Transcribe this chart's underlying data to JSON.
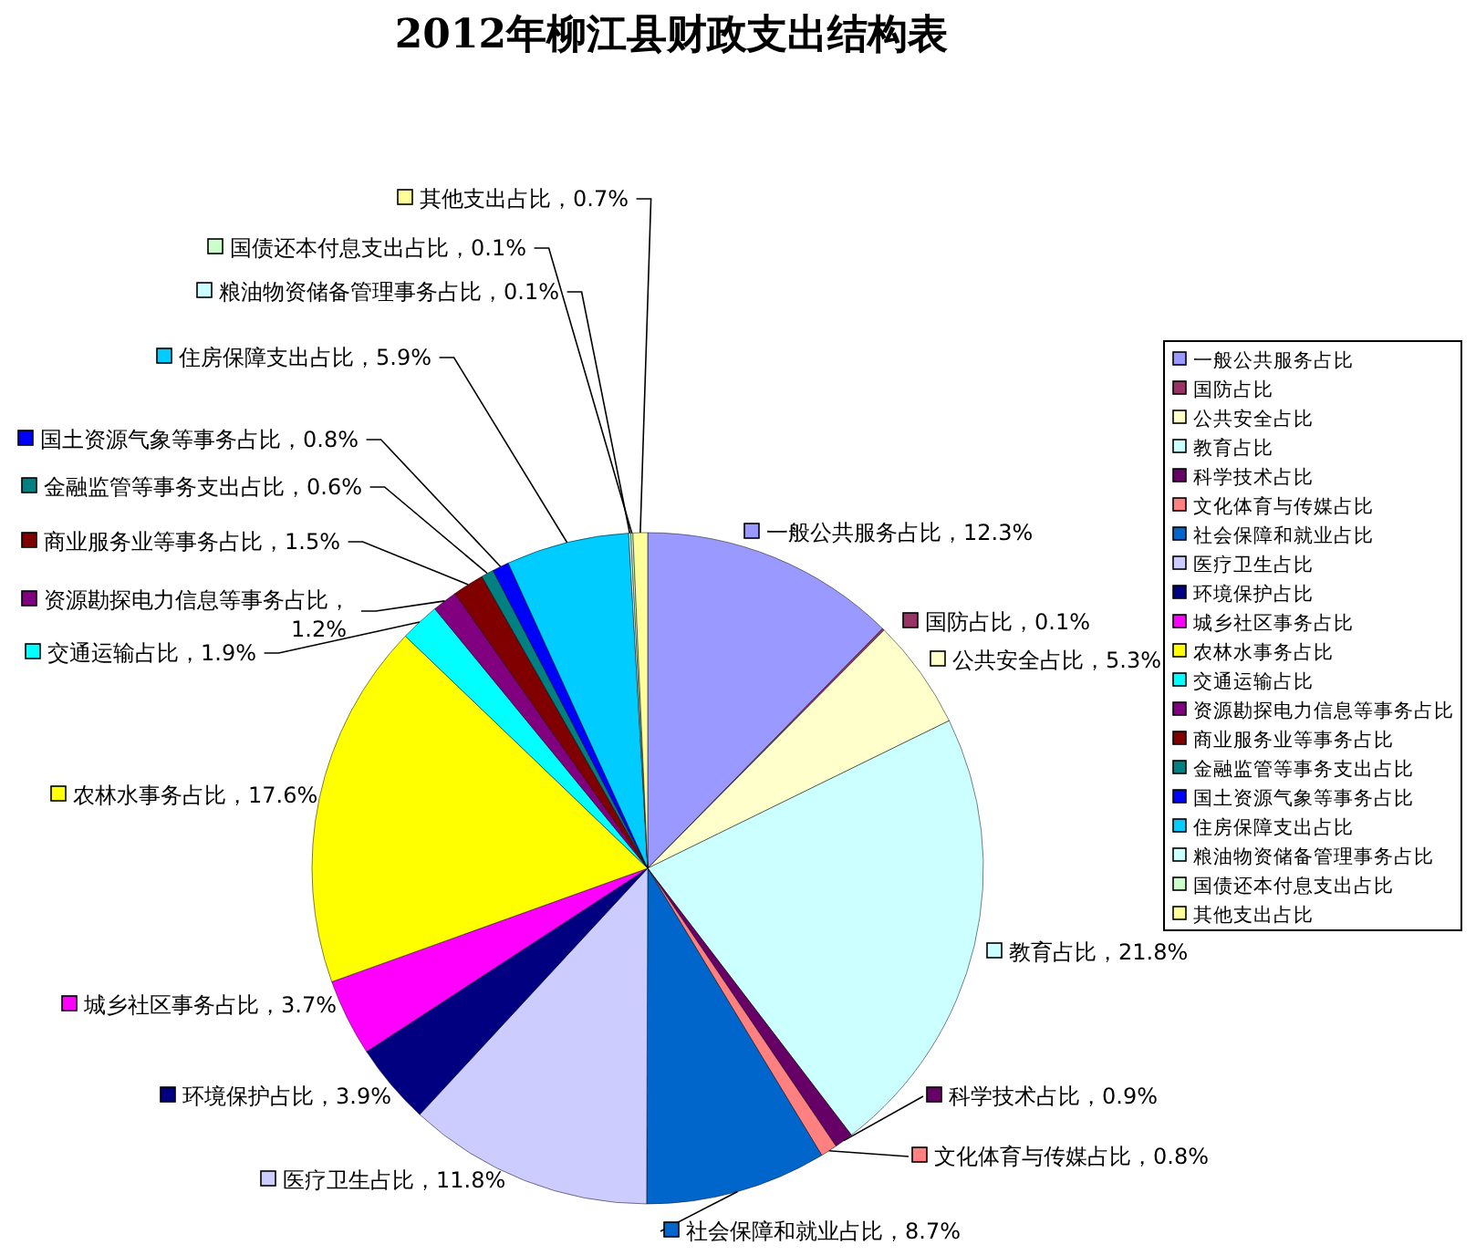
{
  "chart_data": {
    "type": "pie",
    "title": "2012年柳江县财政支出结构表",
    "categories": [
      "一般公共服务占比",
      "国防占比",
      "公共安全占比",
      "教育占比",
      "科学技术占比",
      "文化体育与传媒占比",
      "社会保障和就业占比",
      "医疗卫生占比",
      "环境保护占比",
      "城乡社区事务占比",
      "农林水事务占比",
      "交通运输占比",
      "资源勘探电力信息等事务占比",
      "商业服务业等事务占比",
      "金融监管等事务支出占比",
      "国土资源气象等事务占比",
      "住房保障支出占比",
      "粮油物资储备管理事务占比",
      "国债还本付息支出占比",
      "其他支出占比"
    ],
    "values": [
      12.3,
      0.1,
      5.3,
      21.8,
      0.9,
      0.8,
      8.7,
      11.8,
      3.9,
      3.7,
      17.6,
      1.9,
      1.2,
      1.5,
      0.6,
      0.8,
      5.9,
      0.1,
      0.1,
      0.7
    ],
    "value_labels": [
      "，12.3%",
      "，0.1%",
      "，5.3%",
      "，21.8%",
      "，0.9%",
      "，0.8%",
      "，8.7%",
      "，11.8%",
      "，3.9%",
      "，3.7%",
      "，17.6%",
      "，1.9%",
      "，1.2%",
      "，1.5%",
      "，0.6%",
      "，0.8%",
      "，5.9%",
      "，0.1%",
      "，0.1%",
      "，0.7%"
    ],
    "colors": [
      "#9999ff",
      "#993366",
      "#ffffcc",
      "#ccffff",
      "#660066",
      "#ff8080",
      "#0066cc",
      "#ccccff",
      "#000080",
      "#ff00ff",
      "#ffff00",
      "#00ffff",
      "#800080",
      "#800000",
      "#008080",
      "#0000ff",
      "#00ccff",
      "#ccffff",
      "#ccffcc",
      "#ffff99"
    ],
    "legend": "right"
  }
}
